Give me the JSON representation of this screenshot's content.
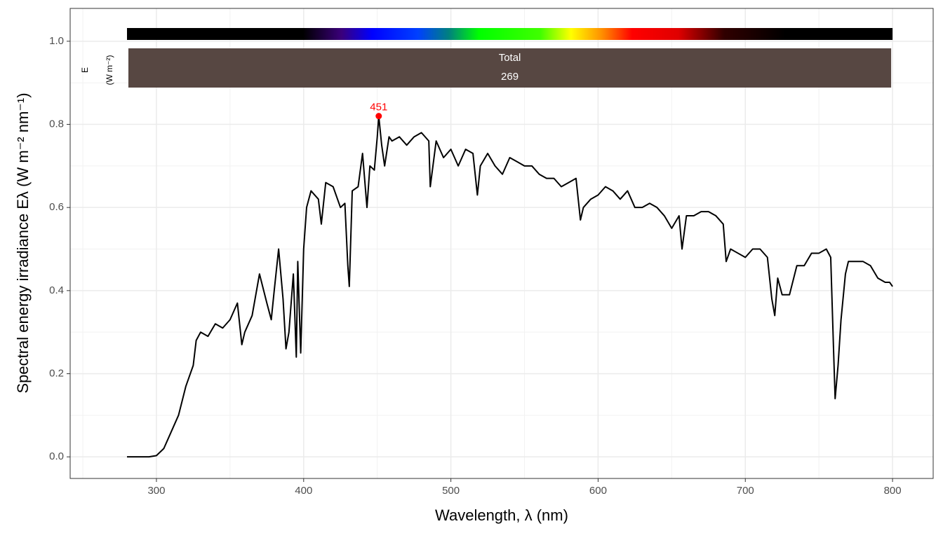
{
  "chart_data": {
    "type": "line",
    "x_label": "Wavelength, λ (nm)",
    "y_label": "Spectral energy irradiance Eλ (W m⁻² nm⁻¹)",
    "xlim": [
      241.4,
      827.6
    ],
    "ylim": [
      -0.052,
      1.079
    ],
    "xticks": [
      300,
      400,
      500,
      600,
      700,
      800
    ],
    "xminorticks": [
      250,
      350,
      450,
      550,
      650,
      750
    ],
    "yticks": [
      {
        "value": 0,
        "label": "0.0"
      },
      {
        "value": 0.2,
        "label": "0.2"
      },
      {
        "value": 0.4,
        "label": "0.4"
      },
      {
        "value": 0.6,
        "label": "0.6"
      },
      {
        "value": 0.8,
        "label": "0.8"
      },
      {
        "value": 1,
        "label": "1.0"
      }
    ],
    "yminorticks": [
      0.1,
      0.3,
      0.5,
      0.7,
      0.9
    ],
    "grid": true,
    "color": "#000000",
    "x": [
      280,
      285,
      290,
      295,
      300,
      305,
      310,
      315,
      320,
      325,
      327,
      330,
      335,
      340,
      345,
      350,
      355,
      358,
      360,
      365,
      370,
      375,
      378,
      380,
      383,
      386,
      388,
      390,
      393,
      395,
      396,
      398,
      400,
      402,
      405,
      410,
      412,
      415,
      420,
      425,
      428,
      430,
      431,
      433,
      437,
      440,
      443,
      445,
      448,
      450,
      451,
      453,
      455,
      458,
      460,
      465,
      470,
      475,
      480,
      485,
      486,
      490,
      495,
      500,
      505,
      510,
      515,
      518,
      520,
      525,
      530,
      535,
      540,
      545,
      550,
      555,
      560,
      565,
      570,
      575,
      580,
      585,
      588,
      590,
      595,
      600,
      605,
      610,
      615,
      620,
      625,
      630,
      635,
      640,
      645,
      650,
      655,
      657,
      660,
      665,
      670,
      675,
      680,
      685,
      687,
      690,
      695,
      700,
      705,
      710,
      715,
      718,
      720,
      722,
      725,
      730,
      735,
      740,
      745,
      750,
      755,
      758,
      760,
      761,
      763,
      765,
      768,
      770,
      775,
      780,
      785,
      790,
      795,
      798,
      800
    ],
    "values": [
      0,
      0,
      0,
      0,
      0.003,
      0.02,
      0.06,
      0.1,
      0.17,
      0.22,
      0.28,
      0.3,
      0.29,
      0.32,
      0.31,
      0.33,
      0.37,
      0.27,
      0.3,
      0.34,
      0.44,
      0.37,
      0.33,
      0.4,
      0.5,
      0.38,
      0.26,
      0.3,
      0.44,
      0.24,
      0.47,
      0.25,
      0.5,
      0.6,
      0.64,
      0.62,
      0.56,
      0.66,
      0.65,
      0.6,
      0.61,
      0.46,
      0.41,
      0.64,
      0.65,
      0.73,
      0.6,
      0.7,
      0.69,
      0.77,
      0.82,
      0.75,
      0.7,
      0.77,
      0.76,
      0.77,
      0.75,
      0.77,
      0.78,
      0.76,
      0.65,
      0.76,
      0.72,
      0.74,
      0.7,
      0.74,
      0.73,
      0.63,
      0.7,
      0.73,
      0.7,
      0.68,
      0.72,
      0.71,
      0.7,
      0.7,
      0.68,
      0.67,
      0.67,
      0.65,
      0.66,
      0.67,
      0.57,
      0.6,
      0.62,
      0.63,
      0.65,
      0.64,
      0.62,
      0.64,
      0.6,
      0.6,
      0.61,
      0.6,
      0.58,
      0.55,
      0.58,
      0.5,
      0.58,
      0.58,
      0.59,
      0.59,
      0.58,
      0.56,
      0.47,
      0.5,
      0.49,
      0.48,
      0.5,
      0.5,
      0.48,
      0.38,
      0.34,
      0.43,
      0.39,
      0.39,
      0.46,
      0.46,
      0.49,
      0.49,
      0.5,
      0.48,
      0.25,
      0.14,
      0.22,
      0.33,
      0.44,
      0.47,
      0.47,
      0.47,
      0.46,
      0.43,
      0.42,
      0.42,
      0.41
    ],
    "peak": {
      "x": 451,
      "y": 0.82,
      "color": "#ff0000"
    },
    "summary": {
      "quantity": "E",
      "unit": "(W m⁻²)",
      "label": "Total",
      "value": 269,
      "color": "#574742",
      "range": [
        280,
        800
      ]
    }
  }
}
